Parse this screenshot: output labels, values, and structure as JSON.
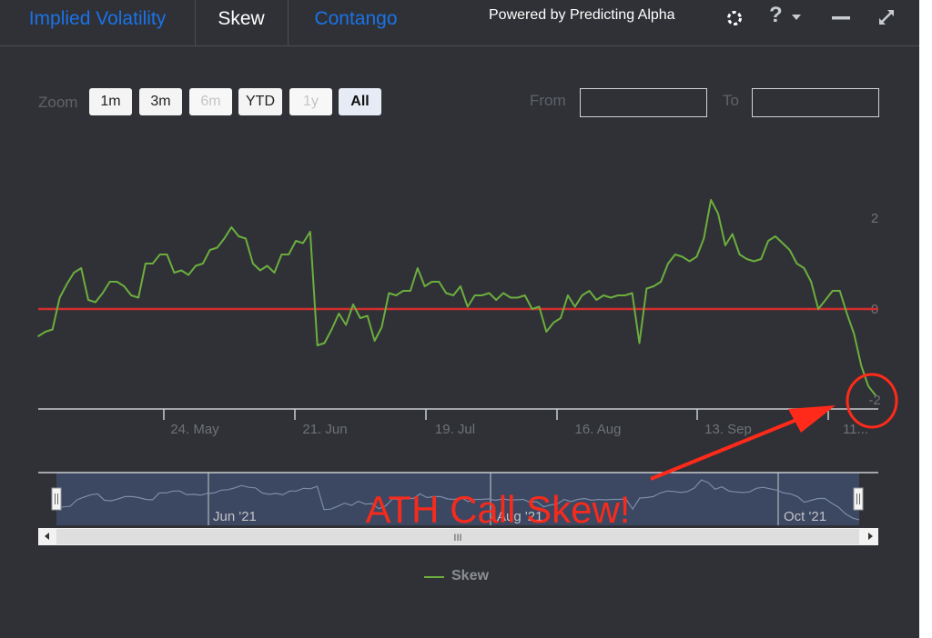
{
  "tabs": [
    {
      "label": "Implied Volatility",
      "color": "#1a73e8"
    },
    {
      "label": "Skew",
      "color": "#ffffff"
    },
    {
      "label": "Contango",
      "color": "#1a73e8"
    }
  ],
  "toolbar": {
    "powered_by": "Powered by Predicting Alpha",
    "icons": [
      "predicting-alpha-logo-icon",
      "help-icon",
      "chevron-down-icon",
      "minimize-icon",
      "expand-icon"
    ],
    "help_glyph": "?"
  },
  "range_selector": {
    "zoom_label": "Zoom",
    "buttons": [
      {
        "label": "1m",
        "state": "enabled"
      },
      {
        "label": "3m",
        "state": "enabled"
      },
      {
        "label": "6m",
        "state": "disabled"
      },
      {
        "label": "YTD",
        "state": "enabled"
      },
      {
        "label": "1y",
        "state": "disabled"
      },
      {
        "label": "All",
        "state": "selected"
      }
    ],
    "from_label": "From",
    "to_label": "To",
    "from_value": "",
    "to_value": ""
  },
  "navigator": {
    "labels": [
      "Jun '21",
      "Aug '21",
      "Oct '21"
    ],
    "scroll_grip": "III"
  },
  "annotation": {
    "text": "ATH Call Skew!",
    "color": "#ff2a1a"
  },
  "legend": {
    "series_name": "Skew"
  },
  "chart_data": {
    "type": "line",
    "title": "",
    "xlabel": "",
    "ylabel": "",
    "x_tick_labels": [
      "24. May",
      "21. Jun",
      "19. Jul",
      "16. Aug",
      "13. Sep",
      "11..."
    ],
    "y_tick_labels": [
      "2",
      "0",
      "-2"
    ],
    "ylim": [
      -2.2,
      2.8
    ],
    "reference_line": {
      "y": 0,
      "color": "#d32f2f"
    },
    "series": [
      {
        "name": "Skew",
        "color": "#6cae3e",
        "x": [
          "2021-04-26",
          "2021-04-27",
          "2021-04-28",
          "2021-04-29",
          "2021-04-30",
          "2021-05-03",
          "2021-05-04",
          "2021-05-05",
          "2021-05-06",
          "2021-05-07",
          "2021-05-10",
          "2021-05-11",
          "2021-05-12",
          "2021-05-13",
          "2021-05-14",
          "2021-05-17",
          "2021-05-18",
          "2021-05-19",
          "2021-05-20",
          "2021-05-21",
          "2021-05-24",
          "2021-05-25",
          "2021-05-26",
          "2021-05-27",
          "2021-05-28",
          "2021-06-01",
          "2021-06-02",
          "2021-06-03",
          "2021-06-04",
          "2021-06-07",
          "2021-06-08",
          "2021-06-09",
          "2021-06-10",
          "2021-06-11",
          "2021-06-14",
          "2021-06-15",
          "2021-06-16",
          "2021-06-17",
          "2021-06-18",
          "2021-06-21",
          "2021-06-22",
          "2021-06-23",
          "2021-06-24",
          "2021-06-25",
          "2021-06-28",
          "2021-06-29",
          "2021-06-30",
          "2021-07-01",
          "2021-07-02",
          "2021-07-06",
          "2021-07-07",
          "2021-07-08",
          "2021-07-09",
          "2021-07-12",
          "2021-07-13",
          "2021-07-14",
          "2021-07-15",
          "2021-07-16",
          "2021-07-19",
          "2021-07-20",
          "2021-07-21",
          "2021-07-22",
          "2021-07-23",
          "2021-07-26",
          "2021-07-27",
          "2021-07-28",
          "2021-07-29",
          "2021-07-30",
          "2021-08-02",
          "2021-08-03",
          "2021-08-04",
          "2021-08-05",
          "2021-08-06",
          "2021-08-09",
          "2021-08-10",
          "2021-08-11",
          "2021-08-12",
          "2021-08-13",
          "2021-08-16",
          "2021-08-17",
          "2021-08-18",
          "2021-08-19",
          "2021-08-20",
          "2021-08-23",
          "2021-08-24",
          "2021-08-25",
          "2021-08-26",
          "2021-08-27",
          "2021-08-30",
          "2021-08-31",
          "2021-09-01",
          "2021-09-02",
          "2021-09-03",
          "2021-09-07",
          "2021-09-08",
          "2021-09-09",
          "2021-09-10",
          "2021-09-13",
          "2021-09-14",
          "2021-09-15",
          "2021-09-16",
          "2021-09-17",
          "2021-09-20",
          "2021-09-21",
          "2021-09-22",
          "2021-09-23",
          "2021-09-24",
          "2021-09-27",
          "2021-09-28",
          "2021-09-29",
          "2021-09-30",
          "2021-10-01",
          "2021-10-04",
          "2021-10-05",
          "2021-10-06",
          "2021-10-07",
          "2021-10-08",
          "2021-10-11"
        ],
        "values": [
          -0.6,
          -0.5,
          -0.45,
          0.25,
          0.55,
          0.8,
          0.9,
          0.2,
          0.15,
          0.35,
          0.6,
          0.6,
          0.5,
          0.3,
          0.25,
          1.0,
          1.0,
          1.2,
          1.2,
          0.8,
          0.85,
          0.75,
          0.95,
          1.0,
          1.3,
          1.35,
          1.55,
          1.8,
          1.6,
          1.55,
          1.0,
          0.85,
          0.95,
          0.8,
          1.2,
          1.2,
          1.5,
          1.45,
          1.7,
          -0.8,
          -0.75,
          -0.45,
          -0.1,
          -0.35,
          0.1,
          -0.2,
          -0.15,
          -0.7,
          -0.4,
          0.35,
          0.3,
          0.4,
          0.4,
          0.9,
          0.5,
          0.6,
          0.6,
          0.35,
          0.3,
          0.5,
          0.05,
          0.3,
          0.3,
          0.35,
          0.2,
          0.35,
          0.25,
          0.25,
          0.3,
          0.0,
          0.05,
          -0.5,
          -0.3,
          -0.2,
          0.3,
          0.05,
          0.3,
          0.4,
          0.2,
          0.3,
          0.25,
          0.3,
          0.3,
          0.35,
          -0.75,
          0.45,
          0.5,
          0.6,
          1.0,
          1.2,
          1.15,
          1.05,
          1.15,
          1.55,
          2.4,
          2.1,
          1.4,
          1.65,
          1.2,
          1.1,
          1.05,
          1.1,
          1.5,
          1.6,
          1.45,
          1.3,
          1.0,
          0.9,
          0.6,
          0.0,
          0.2,
          0.4,
          0.4,
          -0.1,
          -0.55,
          -1.25,
          -1.7,
          -1.9
        ]
      }
    ]
  }
}
